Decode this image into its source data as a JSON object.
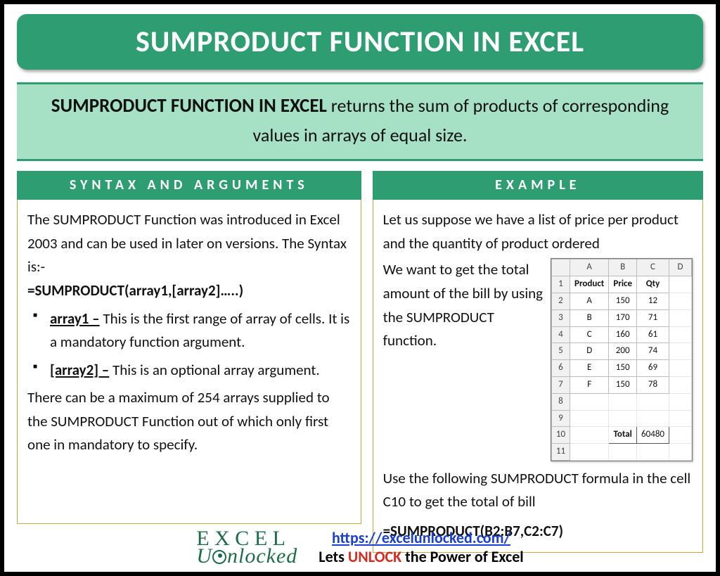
{
  "colors": {
    "brand_green": "#2e9e72",
    "light_green": "#a6e1c5",
    "gold_border": "#c7a93e",
    "link_blue": "#1a3fd4",
    "unlock_red": "#d82c20"
  },
  "title": "SUMPRODUCT FUNCTION IN EXCEL",
  "subtitle": {
    "lead": "SUMPRODUCT FUNCTION IN EXCEL",
    "rest": " returns the sum of products of corresponding values in arrays of equal size."
  },
  "syntax": {
    "header": "SYNTAX AND ARGUMENTS",
    "intro": "The SUMPRODUCT Function was introduced in Excel 2003 and can be used in later on versions. The Syntax is:-",
    "formula": "=SUMPRODUCT(array1,[array2]…..)",
    "args": [
      {
        "name": "array1 –",
        "desc": " This is the first range of array of cells. It is a mandatory function argument."
      },
      {
        "name": "[array2] –",
        "desc": " This is an optional array argument."
      }
    ],
    "outro": "There can be a maximum of 254 arrays supplied to the SUMPRODUCT Function out of which only first one in mandatory to specify."
  },
  "example": {
    "header": "EXAMPLE",
    "p1": "Let us suppose we have a list of price per product and the quantity of product ordered",
    "p2": "We want to get the total amount of the bill by using the SUMPRODUCT function.",
    "p3": "Use the following SUMPRODUCT formula in the cell C10 to get the total of bill",
    "formula": "=SUMPRODUCT(B2:B7,C2:C7)",
    "sheet": {
      "col_letters": [
        "A",
        "B",
        "C",
        "D"
      ],
      "headers": [
        "Product",
        "Price",
        "Qty"
      ],
      "rows": [
        [
          "A",
          "150",
          "12"
        ],
        [
          "B",
          "170",
          "71"
        ],
        [
          "C",
          "160",
          "61"
        ],
        [
          "D",
          "200",
          "74"
        ],
        [
          "E",
          "150",
          "69"
        ],
        [
          "F",
          "150",
          "78"
        ]
      ],
      "total_label": "Total",
      "total_value": "60480",
      "total_row": 10
    }
  },
  "footer": {
    "logo_top": "E X C E L",
    "logo_bottom": "nlocked",
    "url": "https://excelunlocked.com/",
    "tag_pre": "Lets ",
    "tag_unlock": "UNLOCK",
    "tag_post": " the Power of Excel"
  }
}
